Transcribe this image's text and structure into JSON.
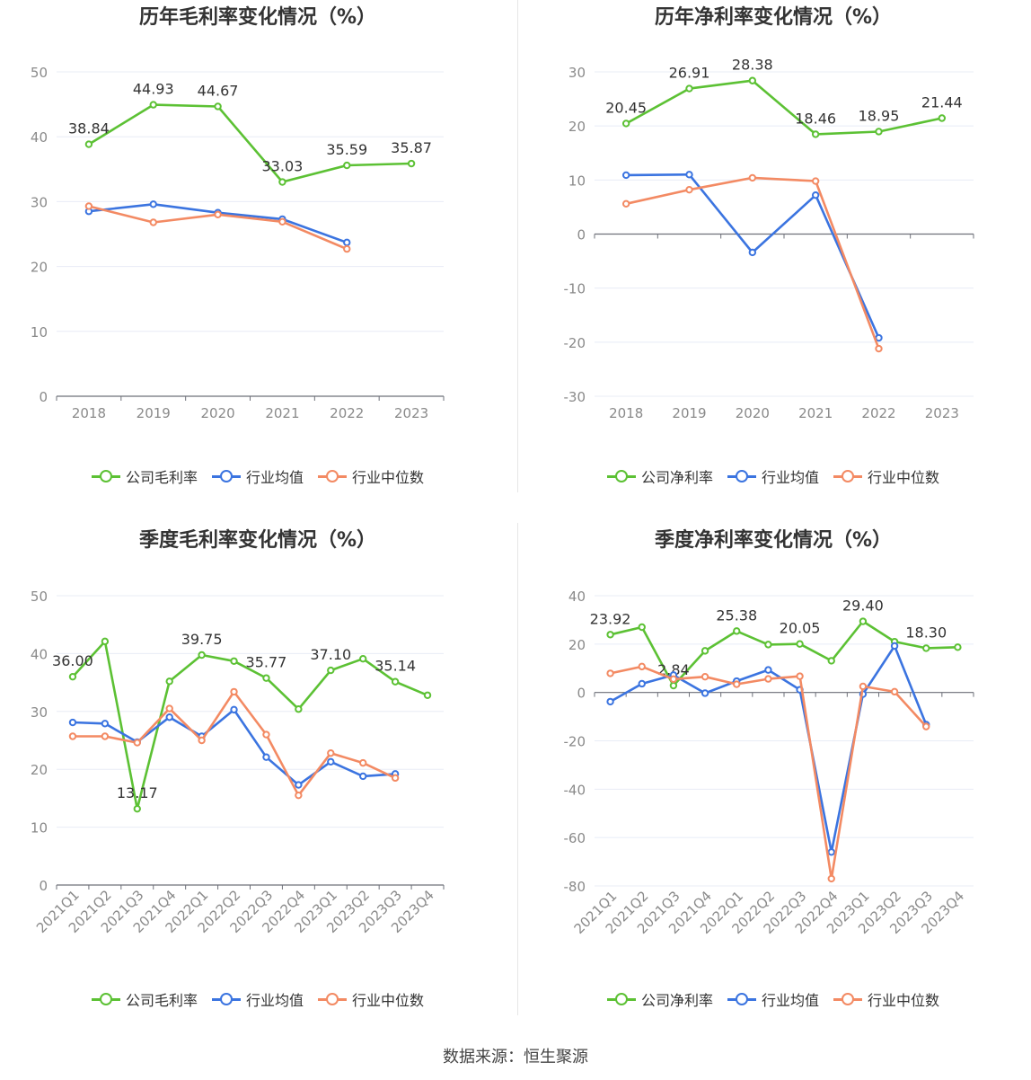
{
  "footer": {
    "source": "数据来源：恒生聚源"
  },
  "colors": {
    "company": "#5cc134",
    "avg": "#3b74e0",
    "median": "#f38a63",
    "grid": "#e8ecf6",
    "axis": "#6e7079",
    "text": "#8a8a8a"
  },
  "chart_data": [
    {
      "type": "line",
      "title": "历年毛利率变化情况（%）",
      "categories": [
        "2018",
        "2019",
        "2020",
        "2021",
        "2022",
        "2023"
      ],
      "ylim": [
        0,
        50
      ],
      "yticks": [
        0,
        10,
        20,
        30,
        40,
        50
      ],
      "grid": true,
      "legend_position": "bottom",
      "series": [
        {
          "name": "公司毛利率",
          "color": "#5cc134",
          "values": [
            38.84,
            44.93,
            44.67,
            33.03,
            35.59,
            35.87
          ],
          "labels": [
            "38.84",
            "44.93",
            "44.67",
            "33.03",
            "35.59",
            "35.87"
          ]
        },
        {
          "name": "行业均值",
          "color": "#3b74e0",
          "values": [
            28.5,
            29.6,
            28.3,
            27.3,
            23.7,
            null
          ]
        },
        {
          "name": "行业中位数",
          "color": "#f38a63",
          "values": [
            29.3,
            26.8,
            28.0,
            26.9,
            22.7,
            null
          ]
        }
      ]
    },
    {
      "type": "line",
      "title": "历年净利率变化情况（%）",
      "categories": [
        "2018",
        "2019",
        "2020",
        "2021",
        "2022",
        "2023"
      ],
      "ylim": [
        -30,
        30
      ],
      "yticks": [
        -30,
        -20,
        -10,
        0,
        10,
        20,
        30
      ],
      "grid": true,
      "legend_position": "bottom",
      "series": [
        {
          "name": "公司净利率",
          "color": "#5cc134",
          "values": [
            20.45,
            26.91,
            28.38,
            18.46,
            18.95,
            21.44
          ],
          "labels": [
            "20.45",
            "26.91",
            "28.38",
            "18.46",
            "18.95",
            "21.44"
          ]
        },
        {
          "name": "行业均值",
          "color": "#3b74e0",
          "values": [
            10.9,
            11.0,
            -3.4,
            7.2,
            -19.2,
            null
          ]
        },
        {
          "name": "行业中位数",
          "color": "#f38a63",
          "values": [
            5.6,
            8.2,
            10.4,
            9.8,
            -21.2,
            null
          ]
        }
      ]
    },
    {
      "type": "line",
      "title": "季度毛利率变化情况（%）",
      "categories": [
        "2021Q1",
        "2021Q2",
        "2021Q3",
        "2021Q4",
        "2022Q1",
        "2022Q2",
        "2022Q3",
        "2022Q4",
        "2023Q1",
        "2023Q2",
        "2023Q3",
        "2023Q4"
      ],
      "ylim": [
        0,
        50
      ],
      "yticks": [
        0,
        10,
        20,
        30,
        40,
        50
      ],
      "grid": true,
      "legend_position": "bottom",
      "series": [
        {
          "name": "公司毛利率",
          "color": "#5cc134",
          "values": [
            36.0,
            42.1,
            13.17,
            35.2,
            39.75,
            38.7,
            35.77,
            30.4,
            37.1,
            39.1,
            35.14,
            32.8
          ],
          "labels": [
            "36.00",
            "",
            "13.17",
            "",
            "39.75",
            "",
            "35.77",
            "",
            "37.10",
            "",
            "35.14",
            ""
          ]
        },
        {
          "name": "行业均值",
          "color": "#3b74e0",
          "values": [
            28.1,
            27.9,
            24.7,
            29.0,
            25.7,
            30.3,
            22.1,
            17.3,
            21.3,
            18.8,
            19.2,
            null
          ]
        },
        {
          "name": "行业中位数",
          "color": "#f38a63",
          "values": [
            25.7,
            25.7,
            24.6,
            30.5,
            25.0,
            33.4,
            26.0,
            15.5,
            22.8,
            21.1,
            18.5,
            null
          ]
        }
      ]
    },
    {
      "type": "line",
      "title": "季度净利率变化情况（%）",
      "categories": [
        "2021Q1",
        "2021Q2",
        "2021Q3",
        "2021Q4",
        "2022Q1",
        "2022Q2",
        "2022Q3",
        "2022Q4",
        "2023Q1",
        "2023Q2",
        "2023Q3",
        "2023Q4"
      ],
      "ylim": [
        -80,
        40
      ],
      "yticks": [
        -80,
        -60,
        -40,
        -20,
        0,
        20,
        40
      ],
      "grid": true,
      "legend_position": "bottom",
      "series": [
        {
          "name": "公司净利率",
          "color": "#5cc134",
          "values": [
            23.92,
            27.0,
            2.84,
            17.2,
            25.38,
            19.8,
            20.05,
            13.1,
            29.4,
            21.0,
            18.3,
            18.7
          ],
          "labels": [
            "23.92",
            "",
            "2.84",
            "",
            "25.38",
            "",
            "20.05",
            "",
            "29.40",
            "",
            "18.30",
            ""
          ]
        },
        {
          "name": "行业均值",
          "color": "#3b74e0",
          "values": [
            -3.8,
            3.6,
            7.2,
            -0.3,
            4.7,
            9.3,
            1.1,
            -66.0,
            -0.7,
            19.2,
            -13.3,
            null
          ]
        },
        {
          "name": "行业中位数",
          "color": "#f38a63",
          "values": [
            7.9,
            10.7,
            5.5,
            6.5,
            3.4,
            5.6,
            6.7,
            -77.0,
            2.5,
            0.3,
            -14.1,
            null
          ]
        }
      ]
    }
  ]
}
